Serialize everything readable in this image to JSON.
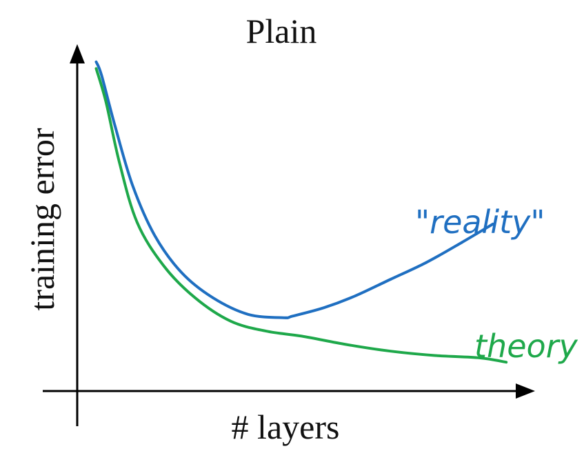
{
  "chart_data": {
    "type": "line",
    "title": "Plain",
    "xlabel": "# layers",
    "ylabel": "training error",
    "xlim": [
      0,
      10
    ],
    "ylim": [
      0,
      10
    ],
    "grid": false,
    "series": [
      {
        "name": "\"reality\"",
        "color": "#1f6fc1",
        "x": [
          0.38,
          0.5,
          0.8,
          1.2,
          1.7,
          2.3,
          3.0,
          3.8,
          4.6,
          4.8,
          5.5,
          6.2,
          7.0,
          7.8,
          8.6,
          9.3
        ],
        "y": [
          9.8,
          9.4,
          7.9,
          6.1,
          4.6,
          3.5,
          2.75,
          2.25,
          2.15,
          2.2,
          2.45,
          2.8,
          3.3,
          3.8,
          4.4,
          4.95
        ]
      },
      {
        "name": "theory",
        "color": "#1ea84a",
        "x": [
          0.38,
          0.6,
          0.9,
          1.3,
          1.9,
          2.6,
          3.4,
          4.2,
          5.0,
          6.0,
          7.0,
          8.0,
          9.0,
          9.6
        ],
        "y": [
          9.6,
          8.6,
          6.8,
          5.0,
          3.7,
          2.75,
          2.05,
          1.75,
          1.6,
          1.35,
          1.15,
          1.02,
          0.95,
          0.82
        ]
      }
    ]
  }
}
